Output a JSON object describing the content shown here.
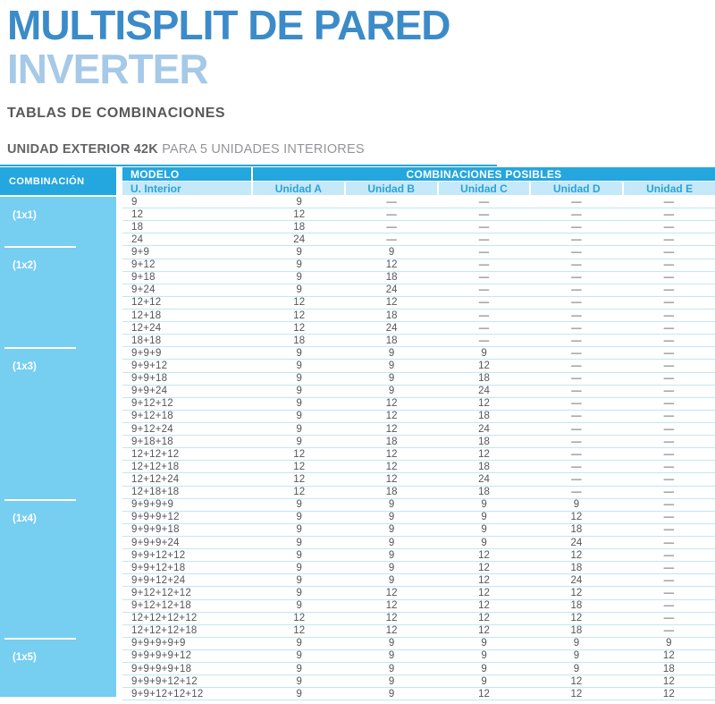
{
  "header": {
    "title": "MULTISPLIT DE PARED",
    "subtitle": "INVERTER"
  },
  "section": {
    "title": "TABLAS DE COMBINACIONES",
    "caption_strong": "UNIDAD EXTERIOR 42K",
    "caption_rest": "PARA 5 UNIDADES INTERIORES"
  },
  "colors": {
    "header_blue": "#24A6DE",
    "subheader_bg": "#C5E9F8",
    "subheader_text": "#2BA2D8",
    "combination_column_bg": "#76CEF1",
    "row_separator": "#C3E6F5",
    "title_blue": "#3C8BC9",
    "inverter_blue": "#A6C9E8"
  },
  "table": {
    "combination_header": "COMBINACIÓN",
    "modelo_header": "MODELO",
    "posibles_header": "COMBINACIONES POSIBLES",
    "u_interior_header": "U. Interior",
    "unit_headers": [
      "Unidad A",
      "Unidad B",
      "Unidad C",
      "Unidad D",
      "Unidad E"
    ],
    "empty_cell": "—",
    "groups": [
      {
        "label": "(1x1)",
        "rows": [
          {
            "interior": "9",
            "units": [
              "9",
              "—",
              "—",
              "—",
              "—"
            ]
          },
          {
            "interior": "12",
            "units": [
              "12",
              "—",
              "—",
              "—",
              "—"
            ]
          },
          {
            "interior": "18",
            "units": [
              "18",
              "—",
              "—",
              "—",
              "—"
            ]
          },
          {
            "interior": "24",
            "units": [
              "24",
              "—",
              "—",
              "—",
              "—"
            ]
          }
        ]
      },
      {
        "label": "(1x2)",
        "rows": [
          {
            "interior": "9+9",
            "units": [
              "9",
              "9",
              "—",
              "—",
              "—"
            ]
          },
          {
            "interior": "9+12",
            "units": [
              "9",
              "12",
              "—",
              "—",
              "—"
            ]
          },
          {
            "interior": "9+18",
            "units": [
              "9",
              "18",
              "—",
              "—",
              "—"
            ]
          },
          {
            "interior": "9+24",
            "units": [
              "9",
              "24",
              "—",
              "—",
              "—"
            ]
          },
          {
            "interior": "12+12",
            "units": [
              "12",
              "12",
              "—",
              "—",
              "—"
            ]
          },
          {
            "interior": "12+18",
            "units": [
              "12",
              "18",
              "—",
              "—",
              "—"
            ]
          },
          {
            "interior": "12+24",
            "units": [
              "12",
              "24",
              "—",
              "—",
              "—"
            ]
          },
          {
            "interior": "18+18",
            "units": [
              "18",
              "18",
              "—",
              "—",
              "—"
            ]
          }
        ]
      },
      {
        "label": "(1x3)",
        "rows": [
          {
            "interior": "9+9+9",
            "units": [
              "9",
              "9",
              "9",
              "—",
              "—"
            ]
          },
          {
            "interior": "9+9+12",
            "units": [
              "9",
              "9",
              "12",
              "—",
              "—"
            ]
          },
          {
            "interior": "9+9+18",
            "units": [
              "9",
              "9",
              "18",
              "—",
              "—"
            ]
          },
          {
            "interior": "9+9+24",
            "units": [
              "9",
              "9",
              "24",
              "—",
              "—"
            ]
          },
          {
            "interior": "9+12+12",
            "units": [
              "9",
              "12",
              "12",
              "—",
              "—"
            ]
          },
          {
            "interior": "9+12+18",
            "units": [
              "9",
              "12",
              "18",
              "—",
              "—"
            ]
          },
          {
            "interior": "9+12+24",
            "units": [
              "9",
              "12",
              "24",
              "—",
              "—"
            ]
          },
          {
            "interior": "9+18+18",
            "units": [
              "9",
              "18",
              "18",
              "—",
              "—"
            ]
          },
          {
            "interior": "12+12+12",
            "units": [
              "12",
              "12",
              "12",
              "—",
              "—"
            ]
          },
          {
            "interior": "12+12+18",
            "units": [
              "12",
              "12",
              "18",
              "—",
              "—"
            ]
          },
          {
            "interior": "12+12+24",
            "units": [
              "12",
              "12",
              "24",
              "—",
              "—"
            ]
          },
          {
            "interior": "12+18+18",
            "units": [
              "12",
              "18",
              "18",
              "—",
              "—"
            ]
          }
        ]
      },
      {
        "label": "(1x4)",
        "rows": [
          {
            "interior": "9+9+9+9",
            "units": [
              "9",
              "9",
              "9",
              "9",
              "—"
            ]
          },
          {
            "interior": "9+9+9+12",
            "units": [
              "9",
              "9",
              "9",
              "12",
              "—"
            ]
          },
          {
            "interior": "9+9+9+18",
            "units": [
              "9",
              "9",
              "9",
              "18",
              "—"
            ]
          },
          {
            "interior": "9+9+9+24",
            "units": [
              "9",
              "9",
              "9",
              "24",
              "—"
            ]
          },
          {
            "interior": "9+9+12+12",
            "units": [
              "9",
              "9",
              "12",
              "12",
              "—"
            ]
          },
          {
            "interior": "9+9+12+18",
            "units": [
              "9",
              "9",
              "12",
              "18",
              "—"
            ]
          },
          {
            "interior": "9+9+12+24",
            "units": [
              "9",
              "9",
              "12",
              "24",
              "—"
            ]
          },
          {
            "interior": "9+12+12+12",
            "units": [
              "9",
              "12",
              "12",
              "12",
              "—"
            ]
          },
          {
            "interior": "9+12+12+18",
            "units": [
              "9",
              "12",
              "12",
              "18",
              "—"
            ]
          },
          {
            "interior": "12+12+12+12",
            "units": [
              "12",
              "12",
              "12",
              "12",
              "—"
            ]
          },
          {
            "interior": "12+12+12+18",
            "units": [
              "12",
              "12",
              "12",
              "18",
              "—"
            ]
          }
        ]
      },
      {
        "label": "(1x5)",
        "rows": [
          {
            "interior": "9+9+9+9+9",
            "units": [
              "9",
              "9",
              "9",
              "9",
              "9"
            ]
          },
          {
            "interior": "9+9+9+9+12",
            "units": [
              "9",
              "9",
              "9",
              "9",
              "12"
            ]
          },
          {
            "interior": "9+9+9+9+18",
            "units": [
              "9",
              "9",
              "9",
              "9",
              "18"
            ]
          },
          {
            "interior": "9+9+9+12+12",
            "units": [
              "9",
              "9",
              "9",
              "12",
              "12"
            ]
          },
          {
            "interior": "9+9+12+12+12",
            "units": [
              "9",
              "9",
              "12",
              "12",
              "12"
            ]
          }
        ]
      }
    ]
  }
}
